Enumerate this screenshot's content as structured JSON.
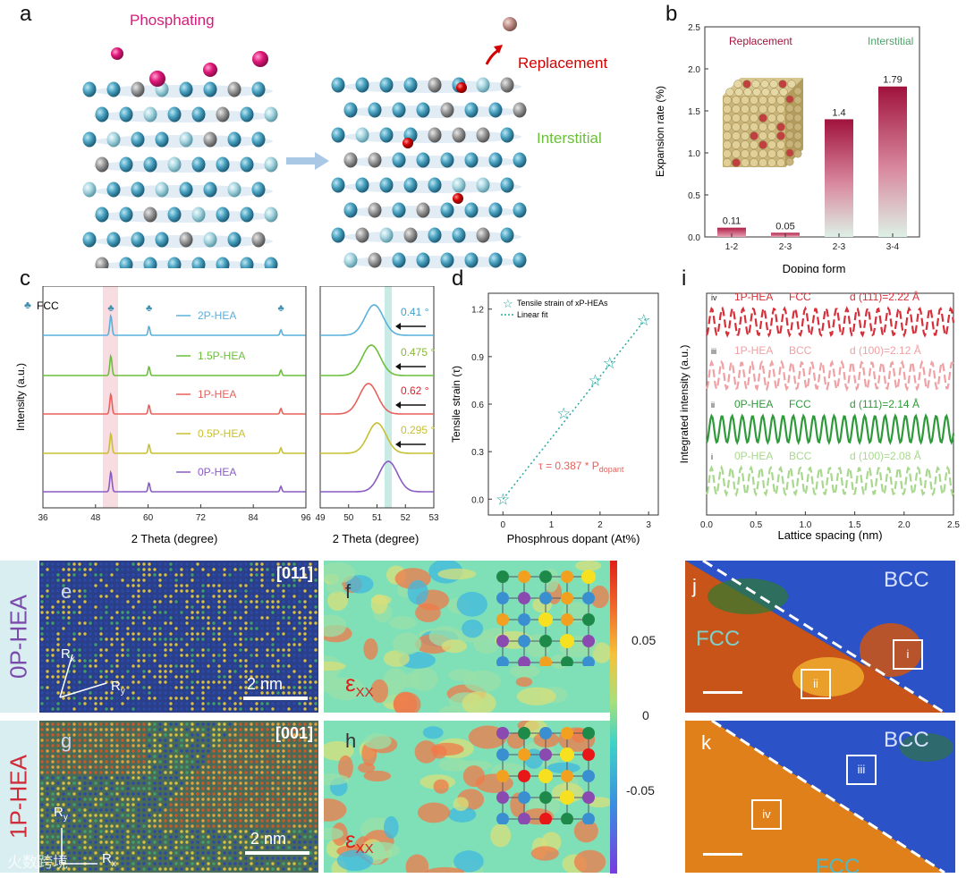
{
  "panel_letters": {
    "a": "a",
    "b": "b",
    "c": "c",
    "d": "d",
    "i": "i",
    "e": "e",
    "f": "f",
    "g": "g",
    "h": "h",
    "j": "j",
    "k": "k"
  },
  "panel_a": {
    "phosphating": "Phosphating",
    "replacement": "Replacement",
    "interstitial": "Interstitial"
  },
  "colors": {
    "teal": "#3e8fb0",
    "pink": "#d81b78",
    "red": "#d40000",
    "green_text": "#6cbf3a",
    "purple": "#7b4bab",
    "hea0": "#8a5bc4",
    "hea1": "#cf2d3a"
  },
  "side_labels": {
    "top": "0P-HEA",
    "bottom": "1P-HEA"
  },
  "panel_e": {
    "zone": "[011]",
    "scale": "2 nm",
    "rx": "R",
    "rx_sub": "x",
    "ry": "R",
    "ry_sub": "y"
  },
  "panel_g": {
    "zone": "[001]",
    "scale": "2 nm",
    "rx": "R",
    "rx_sub": "x",
    "ry": "R",
    "ry_sub": "y"
  },
  "panel_f": {
    "label": "ε",
    "sub": "XX"
  },
  "panel_h": {
    "label": "ε",
    "sub": "XX"
  },
  "colorbar": {
    "ticks": [
      "0.05",
      "0",
      "-0.05"
    ]
  },
  "panel_j": {
    "bcc": "BCC",
    "fcc": "FCC",
    "box1": "i",
    "box2": "ii"
  },
  "panel_k": {
    "bcc": "BCC",
    "fcc": "FCC",
    "box1": "iii",
    "box2": "iv"
  },
  "watermark": "火数跨境",
  "chart_data": [
    {
      "panel": "b",
      "type": "bar",
      "categories": [
        "1-2",
        "2-3",
        "2-3",
        "3-4"
      ],
      "values": [
        0.11,
        0.05,
        1.4,
        1.79
      ],
      "data_labels": [
        "0.11",
        "0.05",
        "1.4",
        "1.79"
      ],
      "group_labels": [
        "Replacement",
        "Interstitial"
      ],
      "xlabel": "Doping form",
      "ylabel": "Expansion rate (%)",
      "ylim": [
        0,
        2.5
      ],
      "yticks": [
        "0.0",
        "0.5",
        "1.0",
        "1.5",
        "2.0",
        "2.5"
      ]
    },
    {
      "panel": "c-left",
      "type": "line",
      "series": [
        {
          "name": "2P-HEA"
        },
        {
          "name": "1.5P-HEA"
        },
        {
          "name": "1P-HEA"
        },
        {
          "name": "0.5P-HEA"
        },
        {
          "name": "0P-HEA"
        }
      ],
      "peaks_2theta": [
        51.5,
        60.2,
        90.3
      ],
      "legend_marker": "FCC",
      "xlabel": "2 Theta (degree)",
      "ylabel": "Intensity (a.u.)",
      "xlim": [
        36,
        96
      ],
      "xticks": [
        "36",
        "48",
        "60",
        "72",
        "84",
        "96"
      ]
    },
    {
      "panel": "c-right",
      "type": "line",
      "series": [
        {
          "name": "2P-HEA",
          "peak": 50.9,
          "shift": "0.41 °"
        },
        {
          "name": "1.5P-HEA",
          "peak": 50.8,
          "shift": "0.475 °"
        },
        {
          "name": "1P-HEA",
          "peak": 50.7,
          "shift": "0.62 °"
        },
        {
          "name": "0.5P-HEA",
          "peak": 51.0,
          "shift": "0.295 °"
        },
        {
          "name": "0P-HEA",
          "peak": 51.4,
          "shift": ""
        }
      ],
      "xlabel": "2 Theta (degree)",
      "xlim": [
        49,
        53
      ],
      "xticks": [
        "49",
        "50",
        "51",
        "52",
        "53"
      ]
    },
    {
      "panel": "d",
      "type": "scatter",
      "x": [
        0,
        1.25,
        1.9,
        2.2,
        2.9
      ],
      "y": [
        0,
        0.54,
        0.75,
        0.86,
        1.13
      ],
      "legend": [
        "Tensile strain of xP-HEAs",
        "Linear fit"
      ],
      "equation": "τ = 0.387 * P",
      "equation_sub": "dopant",
      "xlabel": "Phosphrous dopant (At%)",
      "ylabel": "Tensile strain (τ)",
      "xlim": [
        -0.3,
        3.2
      ],
      "ylim": [
        -0.1,
        1.3
      ],
      "xticks": [
        "0",
        "1",
        "2",
        "3"
      ],
      "yticks": [
        "0.0",
        "0.3",
        "0.6",
        "0.9",
        "1.2"
      ]
    },
    {
      "panel": "i",
      "type": "line",
      "series": [
        {
          "id": "iv",
          "phase": "1P-HEA",
          "struct": "FCC",
          "d": "d (111)=2.22 Å",
          "color": "#d7303a",
          "style": "dashed"
        },
        {
          "id": "iii",
          "phase": "1P-HEA",
          "struct": "BCC",
          "d": "d (100)=2.12 Å",
          "color": "#f0a1a4",
          "style": "dashed"
        },
        {
          "id": "ii",
          "phase": "0P-HEA",
          "struct": "FCC",
          "d": "d (111)=2.14 Å",
          "color": "#2e9a3a",
          "style": "solid"
        },
        {
          "id": "i",
          "phase": "0P-HEA",
          "struct": "BCC",
          "d": "d (100)=2.08 Å",
          "color": "#a8d88e",
          "style": "dashed"
        }
      ],
      "xlabel": "Lattice spacing (nm)",
      "ylabel": "Integrated intensity (a.u.)",
      "xlim": [
        0,
        2.5
      ],
      "xticks": [
        "0.0",
        "0.5",
        "1.0",
        "1.5",
        "2.0",
        "2.5"
      ]
    }
  ]
}
